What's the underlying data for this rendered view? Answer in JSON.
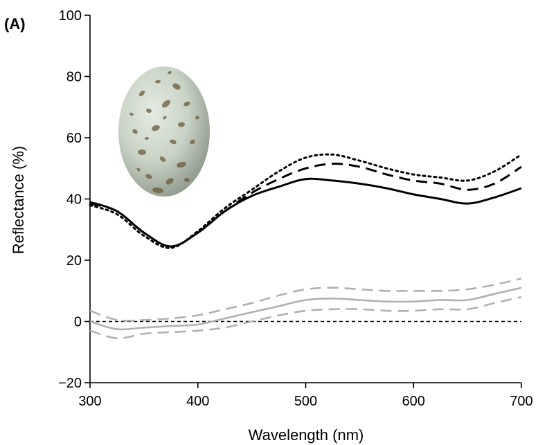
{
  "panel_label": "(A)",
  "chart_data": {
    "type": "line",
    "xlabel": "Wavelength (nm)",
    "ylabel": "Reflectance (%)",
    "xlim": [
      300,
      700
    ],
    "ylim": [
      -20,
      100
    ],
    "xticks": [
      300,
      400,
      500,
      600,
      700
    ],
    "yticks": [
      -20,
      0,
      20,
      40,
      60,
      80,
      100
    ],
    "xtick_labels": [
      "300",
      "400",
      "500",
      "600",
      "700"
    ],
    "ytick_labels": [
      "−20",
      "0",
      "20",
      "40",
      "60",
      "80",
      "100"
    ],
    "grid": false,
    "legend": "none",
    "inset_image": "speckled-egg",
    "x": [
      300,
      325,
      350,
      375,
      400,
      425,
      450,
      475,
      500,
      525,
      550,
      575,
      600,
      625,
      650,
      675,
      700
    ],
    "series": [
      {
        "style": "solid",
        "color": "#000000",
        "values": [
          39,
          36,
          29,
          24.5,
          29,
          36,
          41,
          44,
          46.5,
          46,
          45,
          43.5,
          41.5,
          40,
          38.5,
          40.5,
          43.5
        ]
      },
      {
        "style": "dashed",
        "color": "#000000",
        "values": [
          38.5,
          36,
          29,
          24.5,
          29,
          36,
          42,
          46.5,
          50,
          51.5,
          50.5,
          48,
          46,
          45,
          43,
          45,
          50.5
        ]
      },
      {
        "style": "dotted",
        "color": "#000000",
        "values": [
          38,
          35,
          28,
          24,
          29.5,
          37,
          43,
          49,
          53.5,
          54.5,
          52.5,
          50,
          48,
          47,
          46,
          49,
          54.5
        ]
      },
      {
        "style": "solid",
        "color": "#b0b0b0",
        "values": [
          0,
          -2.5,
          -2,
          -1.5,
          -1,
          1,
          3,
          5,
          7,
          7.5,
          7,
          6.5,
          6.5,
          7,
          7,
          9,
          11
        ]
      },
      {
        "style": "dashed",
        "color": "#b0b0b0",
        "values": [
          3.5,
          0.5,
          0.5,
          1,
          2,
          4,
          6,
          8.5,
          10.5,
          11,
          10.5,
          10,
          10,
          10,
          10.5,
          12,
          14
        ]
      },
      {
        "style": "dashed",
        "color": "#b0b0b0",
        "values": [
          -3,
          -5.5,
          -4,
          -3.5,
          -3,
          -2,
          0,
          2,
          3.5,
          4,
          4,
          3.5,
          3.5,
          4,
          4,
          6,
          8
        ]
      },
      {
        "style": "dotted-fine",
        "color": "#000000",
        "values": [
          0,
          0,
          0,
          0,
          0,
          0,
          0,
          0,
          0,
          0,
          0,
          0,
          0,
          0,
          0,
          0,
          0
        ]
      }
    ]
  }
}
